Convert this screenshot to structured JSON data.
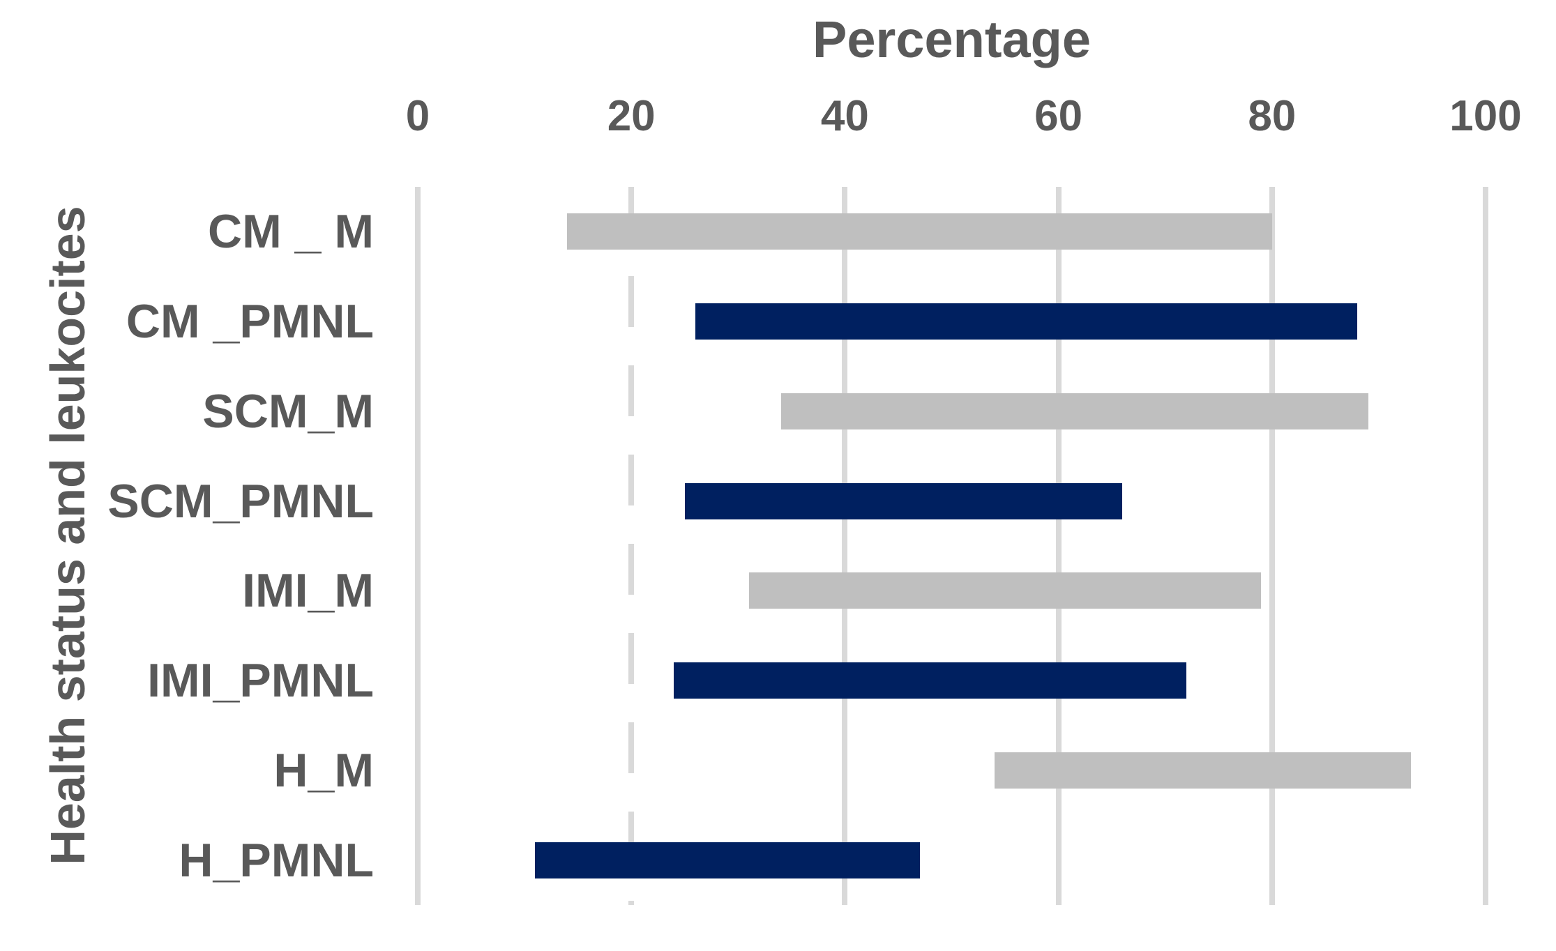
{
  "chart_data": {
    "type": "bar",
    "subtype": "horizontal-range-bars",
    "title": "Percentage",
    "xlabel": "Percentage",
    "ylabel": "Health status and leukocites",
    "xlim": [
      0,
      100
    ],
    "xticks": [
      0,
      20,
      40,
      60,
      80,
      100
    ],
    "grid": "vertical-gridlines-on",
    "dashed_gridline_at": 20,
    "legend": "none",
    "categories": [
      "CM _ M",
      "CM _PMNL",
      "SCM_M",
      "SCM_PMNL",
      "IMI_M",
      "IMI_PMNL",
      "H_M",
      "H_PMNL"
    ],
    "bars": [
      {
        "label": "CM _ M",
        "from": 14,
        "to": 80,
        "series": "M"
      },
      {
        "label": "CM _PMNL",
        "from": 26,
        "to": 88,
        "series": "PMNL"
      },
      {
        "label": "SCM_M",
        "from": 34,
        "to": 89,
        "series": "M"
      },
      {
        "label": "SCM_PMNL",
        "from": 25,
        "to": 66,
        "series": "PMNL"
      },
      {
        "label": "IMI_M",
        "from": 31,
        "to": 79,
        "series": "M"
      },
      {
        "label": "IMI_PMNL",
        "from": 24,
        "to": 72,
        "series": "PMNL"
      },
      {
        "label": "H_M",
        "from": 54,
        "to": 93,
        "series": "M"
      },
      {
        "label": "H_PMNL",
        "from": 11,
        "to": 47,
        "series": "PMNL"
      }
    ],
    "series_colors": {
      "M": "#bfbfbf",
      "PMNL": "#002060"
    },
    "colors": {
      "gridline": "#d9d9d9",
      "text": "#595959",
      "background": "#ffffff"
    }
  }
}
